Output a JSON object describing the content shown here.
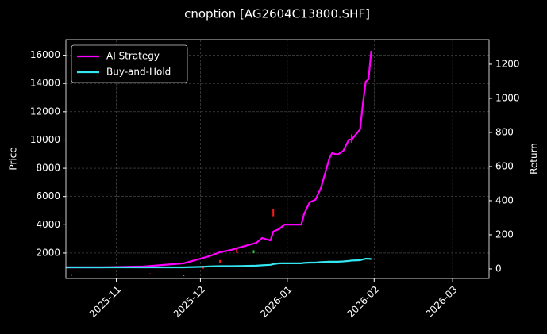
{
  "chart_data": {
    "type": "line",
    "title": "cnoption [AG2604C13800.SHF]",
    "ylabel": "Price",
    "y2label": "Return",
    "x": [
      "2025-10-14",
      "2025-10-27",
      "2025-11-11",
      "2025-11-25",
      "2025-12-01",
      "2025-12-04",
      "2025-12-08",
      "2025-12-12",
      "2025-12-15",
      "2025-12-21",
      "2025-12-23",
      "2025-12-26",
      "2025-12-27",
      "2025-12-29",
      "2025-12-31",
      "2026-01-06",
      "2026-01-07",
      "2026-01-09",
      "2026-01-11",
      "2026-01-13",
      "2026-01-16",
      "2026-01-17",
      "2026-01-19",
      "2026-01-21",
      "2026-01-23",
      "2026-01-24",
      "2026-01-27",
      "2026-01-28",
      "2026-01-29",
      "2026-01-30",
      "2026-01-31"
    ],
    "series": [
      {
        "name": "AI Strategy",
        "color": "#ff00ff",
        "axis": "y2",
        "values": [
          9,
          9,
          14,
          33,
          60,
          74,
          98,
          112,
          126,
          153,
          181,
          167,
          219,
          233,
          260,
          260,
          321,
          391,
          405,
          474,
          647,
          679,
          670,
          693,
          758,
          758,
          819,
          972,
          1098,
          1112,
          1279
        ]
      },
      {
        "name": "Buy-and-Hold",
        "color": "#33e6f0",
        "axis": "y2",
        "values": [
          9,
          9,
          9,
          9,
          12,
          14,
          16,
          16,
          17,
          19,
          21,
          24,
          28,
          33,
          33,
          33,
          35,
          37,
          37,
          40,
          42,
          42,
          42,
          44,
          47,
          49,
          51,
          56,
          60,
          60,
          58
        ]
      }
    ],
    "candles": [
      {
        "date": "2025-10-16",
        "open": 400,
        "close": 450
      },
      {
        "date": "2025-11-13",
        "open": 480,
        "close": 560
      },
      {
        "date": "2025-11-25",
        "open": 420,
        "close": 380
      },
      {
        "date": "2025-12-02",
        "open": 900,
        "close": 1100
      },
      {
        "date": "2025-12-08",
        "open": 1300,
        "close": 1500
      },
      {
        "date": "2025-12-14",
        "open": 2000,
        "close": 2300
      },
      {
        "date": "2025-12-20",
        "open": 2200,
        "close": 2000
      },
      {
        "date": "2025-12-27",
        "open": 4600,
        "close": 5100
      },
      {
        "date": "2026-01-24",
        "open": 9800,
        "close": 10400
      }
    ],
    "up_color": "#ff1a1a",
    "down_color": "#22cc44",
    "xlim": [
      "2025-10-14",
      "2026-03-14"
    ],
    "xticks": [
      {
        "value": "2025-11-01",
        "label": "2025-11"
      },
      {
        "value": "2025-12-01",
        "label": "2025-12"
      },
      {
        "value": "2026-01-01",
        "label": "2026-01"
      },
      {
        "value": "2026-02-01",
        "label": "2026-02"
      },
      {
        "value": "2026-03-01",
        "label": "2026-03"
      }
    ],
    "ylim": [
      200,
      17100
    ],
    "yticks": [
      2000,
      4000,
      6000,
      8000,
      10000,
      12000,
      14000,
      16000
    ],
    "y2lim": [
      -56,
      1344
    ],
    "y2ticks": [
      0,
      200,
      400,
      600,
      800,
      1000,
      1200
    ],
    "grid": true,
    "legend": "upper left"
  }
}
